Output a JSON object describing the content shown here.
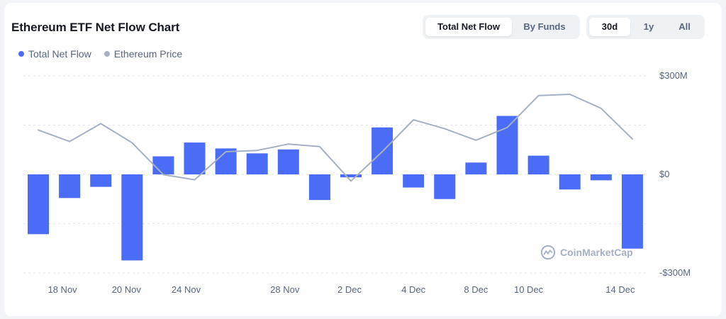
{
  "header": {
    "title": "Ethereum ETF Net Flow Chart"
  },
  "view_tabs": [
    {
      "label": "Total Net Flow",
      "active": true
    },
    {
      "label": "By Funds",
      "active": false
    }
  ],
  "range_tabs": [
    {
      "label": "30d",
      "active": true
    },
    {
      "label": "1y",
      "active": false
    },
    {
      "label": "All",
      "active": false
    }
  ],
  "legend": [
    {
      "label": "Total Net Flow",
      "color": "#4a6cf7"
    },
    {
      "label": "Ethereum Price",
      "color": "#a6b0c3"
    }
  ],
  "watermark": {
    "text": "CoinMarketCap"
  },
  "chart_data": {
    "type": "bar",
    "title": "Ethereum ETF Net Flow Chart",
    "x_tick_labels": [
      "18 Nov",
      "20 Nov",
      "24 Nov",
      "28 Nov",
      "2 Dec",
      "4 Dec",
      "8 Dec",
      "10 Dec",
      "14 Dec"
    ],
    "y_tick_labels": [
      "$300M",
      "$0",
      "-$300M"
    ],
    "ylim": [
      -300,
      300
    ],
    "y_unit": "USD millions",
    "grid": true,
    "legend_position": "top-left",
    "series": [
      {
        "name": "Total Net Flow",
        "type": "bar",
        "color": "#4a6cf7",
        "values": [
          -182,
          -72,
          -38,
          -262,
          55,
          97,
          79,
          64,
          76,
          -78,
          -9,
          143,
          -40,
          -75,
          36,
          178,
          57,
          -46,
          -18,
          -226
        ]
      },
      {
        "name": "Ethereum Price",
        "type": "line",
        "color": "#a6b0c3",
        "relative_level_0_to_1": [
          0.72,
          0.63,
          0.77,
          0.62,
          0.37,
          0.33,
          0.55,
          0.56,
          0.61,
          0.59,
          0.32,
          0.55,
          0.8,
          0.73,
          0.64,
          0.74,
          0.99,
          1.0,
          0.89,
          0.65
        ]
      }
    ]
  }
}
